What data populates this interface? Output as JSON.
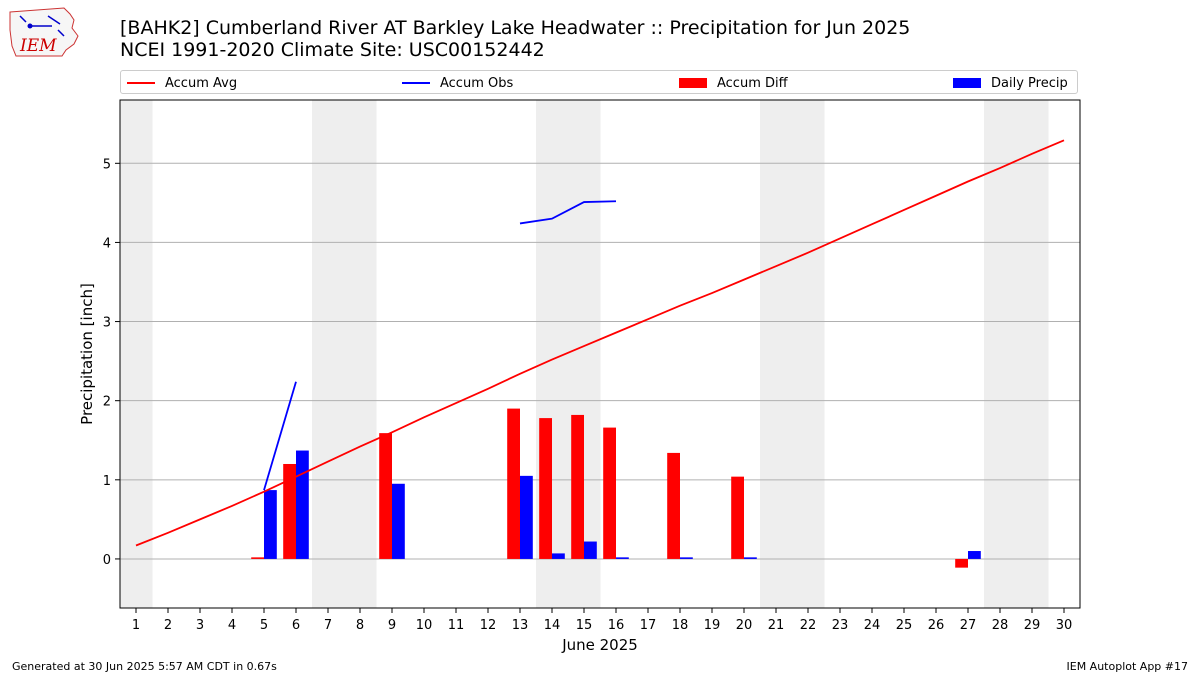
{
  "header": {
    "title_line1": "[BAHK2] Cumberland River  AT Barkley Lake Headwater :: Precipitation for Jun 2025",
    "title_line2": "NCEI 1991-2020 Climate Site: USC00152442",
    "logo_text": "IEM"
  },
  "legend": [
    {
      "label": "Accum Avg",
      "kind": "line",
      "color": "#ff0000"
    },
    {
      "label": "Accum Obs",
      "kind": "line",
      "color": "#0000ff"
    },
    {
      "label": "Accum Diff",
      "kind": "bar",
      "color": "#ff0000"
    },
    {
      "label": "Daily Precip",
      "kind": "bar",
      "color": "#0000ff"
    }
  ],
  "footer": {
    "left": "Generated at 30 Jun 2025 5:57 AM CDT in 0.67s",
    "right": "IEM Autoplot App #17"
  },
  "chart_data": {
    "type": "bar",
    "xlabel": "June 2025",
    "ylabel": "Precipitation [inch]",
    "xlim": [
      0.5,
      30.5
    ],
    "ylim": [
      -0.62,
      5.8
    ],
    "yticks": [
      0,
      1,
      2,
      3,
      4,
      5
    ],
    "xticks": [
      1,
      2,
      3,
      4,
      5,
      6,
      7,
      8,
      9,
      10,
      11,
      12,
      13,
      14,
      15,
      16,
      17,
      18,
      19,
      20,
      21,
      22,
      23,
      24,
      25,
      26,
      27,
      28,
      29,
      30
    ],
    "weekend_days": [
      1,
      7,
      8,
      14,
      15,
      21,
      22,
      28,
      29
    ],
    "grid": "horizontal",
    "legend_position": "top",
    "series": [
      {
        "name": "Accum Avg",
        "kind": "line",
        "color": "#ff0000",
        "x": [
          1,
          2,
          3,
          4,
          5,
          6,
          7,
          8,
          9,
          10,
          11,
          12,
          13,
          14,
          15,
          16,
          17,
          18,
          19,
          20,
          21,
          22,
          23,
          24,
          25,
          26,
          27,
          28,
          29,
          30
        ],
        "values": [
          0.17,
          0.33,
          0.5,
          0.67,
          0.85,
          1.04,
          1.23,
          1.42,
          1.6,
          1.79,
          1.97,
          2.15,
          2.34,
          2.52,
          2.69,
          2.86,
          3.03,
          3.2,
          3.36,
          3.53,
          3.7,
          3.87,
          4.05,
          4.23,
          4.41,
          4.59,
          4.77,
          4.94,
          5.12,
          5.29
        ]
      },
      {
        "name": "Accum Obs",
        "kind": "line",
        "color": "#0000ff",
        "segments": [
          {
            "x": [
              5,
              6
            ],
            "values": [
              0.87,
              2.24
            ]
          },
          {
            "x": [
              13,
              14,
              15,
              16
            ],
            "values": [
              4.24,
              4.3,
              4.51,
              4.52
            ]
          }
        ]
      },
      {
        "name": "Accum Diff",
        "kind": "bar",
        "color": "#ff0000",
        "x": [
          5,
          6,
          9,
          13,
          14,
          15,
          16,
          18,
          20,
          27
        ],
        "values": [
          0.02,
          1.2,
          1.59,
          1.9,
          1.78,
          1.82,
          1.66,
          1.34,
          1.04,
          -0.11
        ]
      },
      {
        "name": "Daily Precip",
        "kind": "bar",
        "color": "#0000ff",
        "x": [
          5,
          6,
          9,
          13,
          14,
          15,
          16,
          18,
          20,
          27
        ],
        "values": [
          0.87,
          1.37,
          0.95,
          1.05,
          0.07,
          0.22,
          0.02,
          0.02,
          0.02,
          0.1
        ]
      }
    ]
  }
}
